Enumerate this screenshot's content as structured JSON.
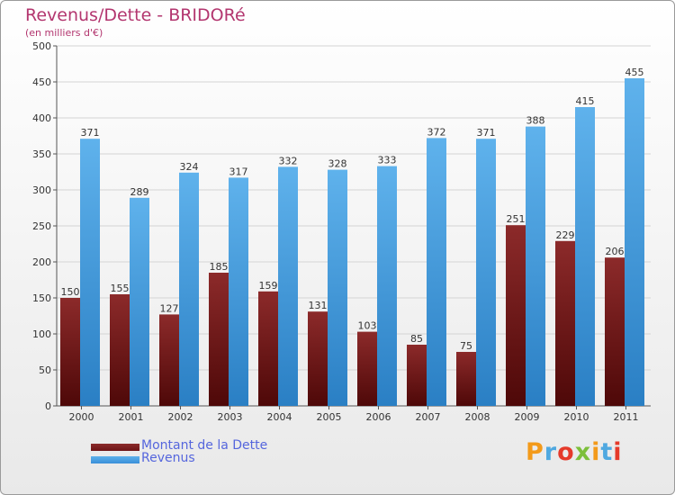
{
  "colors": {
    "dette": "#6e1416",
    "revenus": "#3a8fd8",
    "title": "#b3366f"
  },
  "legend": {
    "dette_label": "Montant de la Dette",
    "revenus_label": "Revenus"
  },
  "logo": {
    "text": "Proxiti"
  },
  "chart_data": {
    "type": "bar",
    "title": "Revenus/Dette - BRIDORé",
    "subtitle": "(en milliers d'€)",
    "categories": [
      "2000",
      "2001",
      "2002",
      "2003",
      "2004",
      "2005",
      "2006",
      "2007",
      "2008",
      "2009",
      "2010",
      "2011"
    ],
    "series": [
      {
        "name": "Montant de la Dette",
        "values": [
          150,
          155,
          127,
          185,
          159,
          131,
          103,
          85,
          75,
          251,
          229,
          206
        ]
      },
      {
        "name": "Revenus",
        "values": [
          371,
          289,
          324,
          317,
          332,
          328,
          333,
          372,
          371,
          388,
          415,
          455
        ]
      }
    ],
    "ylim": [
      0,
      500
    ],
    "yticks": [
      0,
      50,
      100,
      150,
      200,
      250,
      300,
      350,
      400,
      450,
      500
    ],
    "grid": true,
    "legend_position": "bottom-left"
  }
}
